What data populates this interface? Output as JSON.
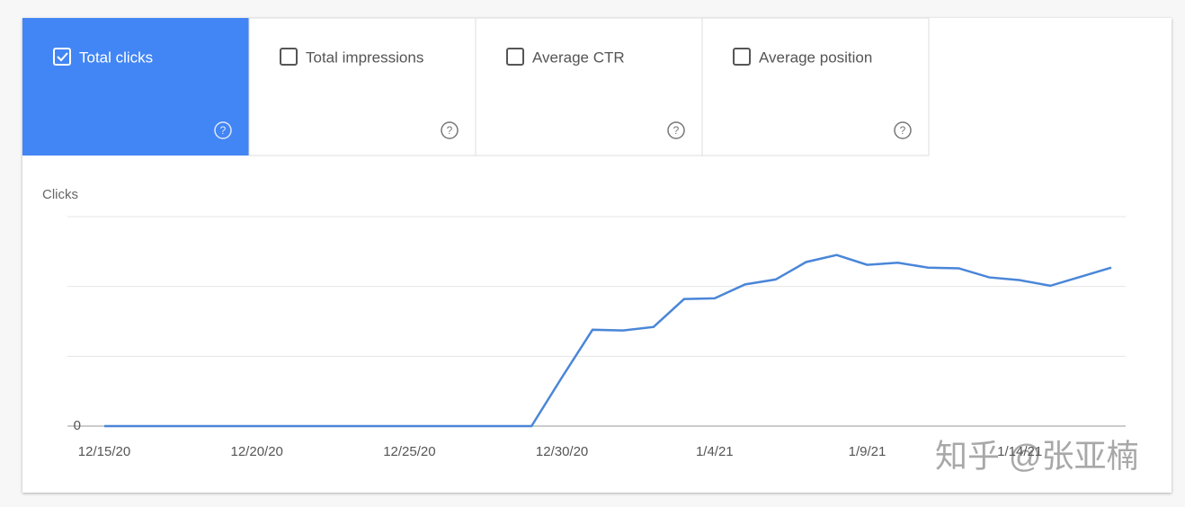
{
  "tabs": [
    {
      "label": "Total clicks",
      "checked": true
    },
    {
      "label": "Total impressions",
      "checked": false
    },
    {
      "label": "Average CTR",
      "checked": false
    },
    {
      "label": "Average position",
      "checked": false
    }
  ],
  "chart_data": {
    "type": "line",
    "y_label": "Clicks",
    "categories": [
      "12/15/20",
      null,
      null,
      null,
      null,
      "12/20/20",
      null,
      null,
      null,
      null,
      "12/25/20",
      null,
      null,
      null,
      null,
      "12/30/20",
      null,
      null,
      null,
      null,
      "1/4/21",
      null,
      null,
      null,
      null,
      "1/9/21",
      null,
      null,
      null,
      null,
      "1/14/21",
      null,
      null,
      null
    ],
    "series": [
      {
        "color": "#4a86d8",
        "values": [
          0,
          0,
          0,
          0,
          0,
          0,
          0,
          0,
          0,
          0,
          0,
          0,
          0,
          0,
          0,
          0.7,
          1.38,
          1.37,
          1.42,
          1.82,
          1.83,
          2.03,
          2.1,
          2.35,
          2.45,
          2.31,
          2.34,
          2.27,
          2.26,
          2.13,
          2.09,
          2.01,
          2.14,
          2.27
        ]
      }
    ],
    "ylim": [
      0,
      3
    ],
    "yticks": [
      0,
      {
        "value": 1,
        "label": null
      },
      {
        "value": 2,
        "label": null
      },
      {
        "value": 3,
        "label": null
      }
    ],
    "grid": true
  },
  "watermark": "知乎 @张亚楠"
}
